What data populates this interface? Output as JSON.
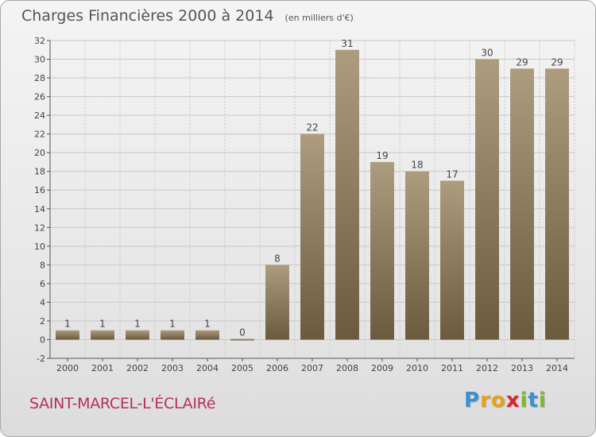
{
  "header": {
    "title": "Charges Financières 2000 à 2014",
    "unit": "(en milliers d'€)"
  },
  "footer": {
    "commune": "SAINT-MARCEL-L'ÉCLAIRé",
    "logo_letters": [
      {
        "char": "P",
        "color": "#3a8fd1"
      },
      {
        "char": "r",
        "color": "#e5a21e"
      },
      {
        "char": "o",
        "color": "#e5a21e"
      },
      {
        "char": "x",
        "color": "#d9262c"
      },
      {
        "char": "i",
        "color": "#7cb833"
      },
      {
        "char": "t",
        "color": "#3a8fd1"
      },
      {
        "char": "i",
        "color": "#7cb833"
      }
    ]
  },
  "colors": {
    "bar_top": "#ad9c7e",
    "bar_bottom": "#6b5a3e",
    "grid": "#c8c8c8",
    "axis_text": "#444444",
    "label_text": "#444444"
  },
  "chart_data": {
    "type": "bar",
    "categories": [
      "2000",
      "2001",
      "2002",
      "2003",
      "2004",
      "2005",
      "2006",
      "2007",
      "2008",
      "2009",
      "2010",
      "2011",
      "2012",
      "2013",
      "2014"
    ],
    "values": [
      1,
      1,
      1,
      1,
      1,
      0,
      8,
      22,
      31,
      19,
      18,
      17,
      30,
      29,
      29
    ],
    "data_labels": [
      "1",
      "1",
      "1",
      "1",
      "1",
      "0",
      "8",
      "22",
      "31",
      "19",
      "18",
      "17",
      "30",
      "29",
      "29"
    ],
    "title": "Charges Financières 2000 à 2014",
    "subtitle": "(en milliers d'€)",
    "ylim": [
      -2,
      32
    ],
    "yticks": [
      -2,
      0,
      2,
      4,
      6,
      8,
      10,
      12,
      14,
      16,
      18,
      20,
      22,
      24,
      26,
      28,
      30,
      32
    ],
    "grid": "horizontal",
    "legend": "none"
  }
}
